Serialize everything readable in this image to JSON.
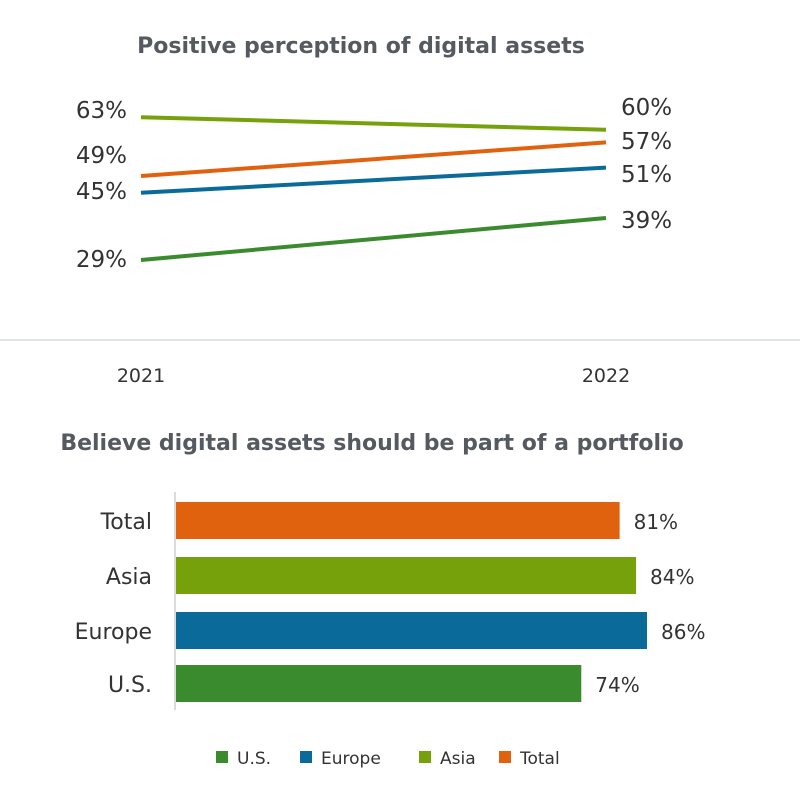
{
  "chart_data": [
    {
      "type": "line",
      "title": "Positive perception of digital assets",
      "x": [
        "2021",
        "2022"
      ],
      "series": [
        {
          "name": "U.S.",
          "color": "#3a8a2e",
          "values": [
            29,
            39
          ],
          "labels": [
            "29%",
            "39%"
          ]
        },
        {
          "name": "Europe",
          "color": "#0a6b9a",
          "values": [
            45,
            51
          ],
          "labels": [
            "45%",
            "51%"
          ]
        },
        {
          "name": "Asia",
          "color": "#76a10a",
          "values": [
            63,
            60
          ],
          "labels": [
            "63%",
            "60%"
          ]
        },
        {
          "name": "Total",
          "color": "#e0620e",
          "values": [
            49,
            57
          ],
          "labels": [
            "49%",
            "57%"
          ]
        }
      ]
    },
    {
      "type": "bar",
      "orientation": "horizontal",
      "title": "Believe digital assets should be part of a portfolio",
      "categories": [
        "Total",
        "Asia",
        "Europe",
        "U.S."
      ],
      "values": [
        81,
        84,
        86,
        74
      ],
      "labels": [
        "81%",
        "84%",
        "86%",
        "74%"
      ],
      "colors": [
        "#e0620e",
        "#76a10a",
        "#0a6b9a",
        "#3a8a2e"
      ]
    }
  ],
  "legend": [
    {
      "name": "U.S.",
      "color": "#3a8a2e"
    },
    {
      "name": "Europe",
      "color": "#0a6b9a"
    },
    {
      "name": "Asia",
      "color": "#76a10a"
    },
    {
      "name": "Total",
      "color": "#e0620e"
    }
  ]
}
